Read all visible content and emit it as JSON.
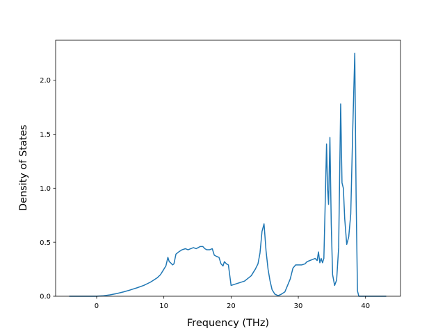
{
  "chart_data": {
    "type": "line",
    "title": "",
    "xlabel": "Frequency (THz)",
    "ylabel": "Density of States",
    "xlim": [
      -6.1,
      45.2
    ],
    "ylim": [
      0.0,
      2.37
    ],
    "xticks": [
      0,
      10,
      20,
      30,
      40
    ],
    "yticks": [
      0.0,
      0.5,
      1.0,
      1.5,
      2.0
    ],
    "xtick_labels": [
      "0",
      "10",
      "20",
      "30",
      "40"
    ],
    "ytick_labels": [
      "0.0",
      "0.5",
      "1.0",
      "1.5",
      "2.0"
    ],
    "grid": false,
    "legend": "none",
    "colors": {
      "line": "#1f77b4",
      "axes": "#000000",
      "background": "#ffffff"
    },
    "series": [
      {
        "x": [
          -4.0,
          -2.0,
          0.0,
          1.0,
          2.0,
          3.0,
          4.0,
          5.0,
          6.0,
          7.0,
          8.0,
          9.0,
          9.5,
          10.0,
          10.3,
          10.6,
          10.8,
          11.0,
          11.3,
          11.5,
          11.8,
          12.2,
          12.7,
          13.2,
          13.6,
          14.0,
          14.4,
          14.8,
          15.1,
          15.4,
          15.8,
          16.1,
          16.4,
          16.8,
          17.2,
          17.5,
          17.8,
          18.2,
          18.5,
          18.8,
          19.0,
          19.3,
          19.6,
          20.0,
          21.0,
          22.0,
          23.0,
          23.6,
          24.0,
          24.3,
          24.6,
          24.9,
          25.2,
          25.5,
          25.8,
          26.1,
          26.5,
          27.0,
          27.5,
          28.0,
          28.4,
          28.8,
          29.2,
          29.6,
          30.0,
          30.5,
          31.0,
          31.3,
          31.7,
          32.1,
          32.5,
          32.8,
          33.0,
          33.2,
          33.4,
          33.6,
          33.8,
          34.0,
          34.2,
          34.35,
          34.5,
          34.7,
          34.9,
          35.1,
          35.4,
          35.7,
          36.0,
          36.3,
          36.5,
          36.7,
          36.9,
          37.2,
          37.5,
          37.8,
          38.1,
          38.4,
          38.6,
          38.8,
          39.0,
          39.3,
          40.0,
          41.0,
          43.0
        ],
        "y": [
          0.0,
          0.0,
          0.0,
          0.004,
          0.013,
          0.025,
          0.04,
          0.058,
          0.078,
          0.1,
          0.13,
          0.17,
          0.2,
          0.25,
          0.28,
          0.36,
          0.32,
          0.31,
          0.29,
          0.3,
          0.39,
          0.41,
          0.43,
          0.44,
          0.43,
          0.44,
          0.45,
          0.44,
          0.45,
          0.46,
          0.46,
          0.44,
          0.43,
          0.43,
          0.44,
          0.38,
          0.37,
          0.36,
          0.3,
          0.28,
          0.32,
          0.3,
          0.29,
          0.1,
          0.12,
          0.14,
          0.19,
          0.25,
          0.3,
          0.4,
          0.6,
          0.67,
          0.42,
          0.25,
          0.14,
          0.06,
          0.02,
          0.005,
          0.02,
          0.04,
          0.1,
          0.16,
          0.26,
          0.29,
          0.29,
          0.29,
          0.3,
          0.32,
          0.33,
          0.34,
          0.35,
          0.33,
          0.41,
          0.31,
          0.35,
          0.31,
          0.35,
          0.86,
          1.41,
          1.0,
          0.85,
          1.47,
          0.67,
          0.2,
          0.1,
          0.15,
          0.45,
          1.78,
          1.05,
          1.0,
          0.72,
          0.48,
          0.55,
          0.76,
          1.55,
          2.25,
          0.9,
          0.05,
          0.0,
          0.0,
          0.0,
          0.0,
          0.0
        ]
      }
    ]
  }
}
